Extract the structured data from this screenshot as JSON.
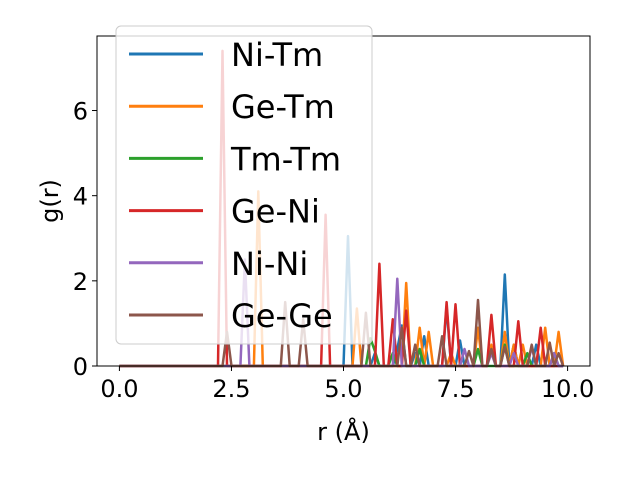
{
  "chart_data": {
    "type": "line",
    "title": "",
    "xlabel": "r (Å)",
    "ylabel": "g(r)",
    "xlim": [
      -0.5,
      10.5
    ],
    "ylim": [
      0,
      7.75
    ],
    "xticks": [
      0.0,
      2.5,
      5.0,
      7.5,
      10.0
    ],
    "xtick_labels": [
      "0.0",
      "2.5",
      "5.0",
      "7.5",
      "10.0"
    ],
    "yticks": [
      0,
      2,
      4,
      6
    ],
    "ytick_labels": [
      "0",
      "2",
      "4",
      "6"
    ],
    "grid": false,
    "legend_position": "upper-left",
    "series": [
      {
        "name": "Ni-Tm",
        "color": "#1f77b4",
        "x": [
          0,
          2.3,
          2.4,
          2.5,
          2.6,
          2.7,
          2.8,
          2.9,
          3.0,
          3.1,
          3.2,
          3.3,
          3.4,
          3.5,
          3.6,
          3.7,
          3.8,
          3.9,
          4.0,
          4.1,
          4.2,
          4.3,
          4.4,
          4.5,
          4.6,
          4.7,
          4.8,
          4.9,
          5.0,
          5.1,
          5.2,
          5.3,
          5.4,
          5.5,
          5.6,
          5.7,
          5.8,
          5.9,
          6.0,
          6.1,
          6.2,
          6.3,
          6.4,
          6.5,
          6.6,
          6.7,
          6.8,
          6.9,
          7.0,
          7.1,
          7.2,
          7.3,
          7.4,
          7.5,
          7.6,
          7.7,
          7.8,
          7.9,
          8.0,
          8.1,
          8.2,
          8.3,
          8.4,
          8.5,
          8.6,
          8.7,
          8.8,
          8.9,
          9.0,
          9.1,
          9.2,
          9.3,
          9.4,
          9.5,
          9.6,
          9.7,
          9.8,
          9.9
        ],
        "y": [
          0,
          0,
          0,
          0,
          0,
          0,
          0,
          0,
          0,
          0,
          0,
          0,
          0,
          0,
          0,
          0,
          0,
          0,
          0,
          0,
          0,
          0,
          0,
          0,
          0,
          0,
          0,
          0,
          0,
          3.05,
          0,
          0,
          0,
          0,
          0,
          0.3,
          0,
          0,
          0,
          0,
          0.4,
          0.95,
          0,
          0,
          0.3,
          0,
          0.7,
          0,
          0,
          0,
          0,
          1.4,
          0,
          0,
          0.6,
          0,
          0,
          0,
          0,
          0,
          0,
          0.4,
          0,
          0,
          2.15,
          0,
          0.5,
          0,
          0,
          0,
          0,
          0.5,
          0,
          0,
          0,
          0,
          0,
          0
        ]
      },
      {
        "name": "Ge-Tm",
        "color": "#ff7f0e",
        "x": [
          0,
          2.8,
          2.9,
          3.0,
          3.1,
          3.2,
          3.3,
          3.4,
          3.5,
          3.6,
          3.7,
          3.8,
          3.9,
          4.0,
          4.1,
          4.2,
          4.3,
          4.4,
          4.5,
          4.6,
          4.7,
          4.8,
          4.9,
          5.0,
          5.1,
          5.2,
          5.3,
          5.4,
          5.5,
          5.6,
          5.7,
          5.8,
          5.9,
          6.0,
          6.1,
          6.2,
          6.3,
          6.4,
          6.5,
          6.6,
          6.7,
          6.8,
          6.9,
          7.0,
          7.1,
          7.2,
          7.3,
          7.4,
          7.5,
          7.6,
          7.7,
          7.8,
          7.9,
          8.0,
          8.1,
          8.2,
          8.3,
          8.4,
          8.5,
          8.6,
          8.7,
          8.8,
          8.9,
          9.0,
          9.1,
          9.2,
          9.3,
          9.4,
          9.5,
          9.6,
          9.7,
          9.8,
          9.9
        ],
        "y": [
          0,
          0,
          0,
          0,
          4.1,
          0,
          0,
          0,
          0,
          0,
          0,
          0,
          0,
          0,
          0,
          0,
          0,
          0,
          0,
          0,
          0,
          0,
          0,
          0,
          0,
          0,
          1.35,
          0,
          0,
          0,
          0,
          0,
          0,
          0,
          0,
          0,
          0,
          1.95,
          0,
          0,
          0.9,
          0,
          0.8,
          0,
          0,
          0,
          0,
          0.3,
          0,
          0,
          0,
          0,
          0,
          0.9,
          0,
          0,
          0.5,
          0,
          0,
          0.8,
          0,
          0.5,
          0,
          0.5,
          0,
          0,
          0,
          0,
          0.9,
          0,
          0,
          0.8,
          0
        ]
      },
      {
        "name": "Tm-Tm",
        "color": "#2ca02c",
        "x": [
          0,
          5.4,
          5.5,
          5.6,
          5.7,
          5.8,
          5.9,
          6.0,
          6.1,
          6.2,
          6.3,
          6.4,
          6.5,
          6.6,
          6.7,
          6.8,
          6.9,
          7.0,
          7.1,
          7.2,
          7.3,
          7.4,
          7.5,
          7.6,
          7.7,
          7.8,
          7.9,
          8.0,
          8.1,
          8.2,
          8.3,
          8.4,
          8.5,
          8.6,
          8.7,
          8.8,
          8.9,
          9.0,
          9.1,
          9.2,
          9.3,
          9.4,
          9.5,
          9.6,
          9.7,
          9.8,
          9.9
        ],
        "y": [
          0,
          0,
          0,
          0.65,
          0.35,
          0,
          0,
          0,
          0.3,
          0,
          0,
          0,
          0,
          0,
          0.4,
          0,
          0,
          0,
          0,
          0,
          0,
          0,
          0,
          0,
          0,
          0,
          0,
          0.4,
          0,
          0,
          0,
          0,
          0,
          0.5,
          0,
          0,
          0,
          0,
          0.3,
          0,
          0,
          0,
          0,
          0,
          0.3,
          0,
          0
        ]
      },
      {
        "name": "Ge-Ni",
        "color": "#d62728",
        "x": [
          0,
          2.1,
          2.2,
          2.3,
          2.4,
          2.5,
          2.6,
          2.7,
          2.8,
          2.9,
          3.0,
          3.1,
          3.2,
          3.3,
          3.4,
          3.5,
          3.6,
          3.7,
          3.8,
          3.9,
          4.0,
          4.1,
          4.2,
          4.3,
          4.4,
          4.5,
          4.6,
          4.7,
          4.8,
          4.9,
          5.0,
          5.1,
          5.2,
          5.3,
          5.4,
          5.5,
          5.6,
          5.7,
          5.8,
          5.9,
          6.0,
          6.1,
          6.2,
          6.3,
          6.4,
          6.5,
          6.6,
          6.7,
          6.8,
          6.9,
          7.0,
          7.1,
          7.2,
          7.3,
          7.4,
          7.5,
          7.6,
          7.7,
          7.8,
          7.9,
          8.0,
          8.1,
          8.2,
          8.3,
          8.4,
          8.5,
          8.6,
          8.7,
          8.8,
          8.9,
          9.0,
          9.1,
          9.2,
          9.3,
          9.4,
          9.5,
          9.6,
          9.7,
          9.8,
          9.9
        ],
        "y": [
          0,
          0,
          0,
          7.4,
          0,
          0,
          0,
          0,
          0,
          0,
          0,
          0,
          0,
          0,
          0,
          0,
          0,
          0,
          0,
          0,
          0,
          0,
          0,
          0,
          0,
          0,
          3.55,
          0,
          0,
          0,
          0,
          0,
          0,
          0,
          0,
          0,
          0,
          0,
          2.4,
          0,
          0,
          1.1,
          0,
          0,
          1.3,
          0,
          0,
          0,
          0,
          0,
          0,
          0,
          0,
          1.5,
          0,
          1.45,
          0,
          0,
          0,
          0,
          0,
          0,
          0,
          1.2,
          0,
          0,
          0,
          0,
          0,
          1.05,
          0,
          0,
          0,
          0,
          0.9,
          0,
          0,
          0,
          0,
          0
        ]
      },
      {
        "name": "Ni-Ni",
        "color": "#9467bd",
        "x": [
          0,
          2.6,
          2.7,
          2.8,
          2.9,
          3.0,
          3.1,
          3.2,
          3.3,
          3.4,
          3.5,
          3.6,
          3.7,
          3.8,
          3.9,
          4.0,
          4.1,
          4.2,
          4.3,
          4.4,
          4.5,
          4.6,
          4.7,
          4.8,
          4.9,
          5.0,
          5.1,
          5.2,
          5.3,
          5.4,
          5.5,
          5.6,
          5.7,
          5.8,
          5.9,
          6.0,
          6.1,
          6.2,
          6.3,
          6.4,
          6.5,
          6.6,
          6.7,
          6.8,
          6.9,
          7.0,
          7.1,
          7.2,
          7.3,
          7.4,
          7.5,
          7.6,
          7.7,
          7.8,
          7.9,
          8.0,
          8.1,
          8.2,
          8.3,
          8.4,
          8.5,
          8.6,
          8.7,
          8.8,
          8.9,
          9.0,
          9.1,
          9.2,
          9.3,
          9.4,
          9.5,
          9.6,
          9.7,
          9.8,
          9.9
        ],
        "y": [
          0,
          0,
          0,
          2.5,
          0,
          0,
          0,
          0,
          0,
          0,
          0,
          0,
          0,
          0,
          0,
          0,
          0,
          0,
          0,
          0,
          0,
          0,
          0,
          0,
          0,
          0,
          0,
          0,
          0,
          0,
          0,
          0,
          0,
          0,
          0,
          0,
          0,
          2.05,
          0,
          0,
          0,
          0,
          0,
          0,
          0,
          0,
          0,
          0,
          0,
          0,
          0,
          0,
          0.4,
          0,
          0,
          0,
          0,
          0,
          0.3,
          0,
          0,
          0,
          0,
          0.3,
          0,
          0,
          0,
          0.45,
          0,
          0,
          0,
          0,
          0.3,
          0,
          0
        ]
      },
      {
        "name": "Ge-Ge",
        "color": "#8c564b",
        "x": [
          0,
          2.3,
          2.4,
          2.5,
          2.6,
          2.7,
          2.8,
          2.9,
          3.0,
          3.1,
          3.2,
          3.3,
          3.4,
          3.5,
          3.6,
          3.7,
          3.8,
          3.9,
          4.0,
          4.1,
          4.2,
          4.3,
          4.4,
          4.5,
          4.6,
          4.7,
          4.8,
          4.9,
          5.0,
          5.1,
          5.2,
          5.3,
          5.4,
          5.5,
          5.6,
          5.7,
          5.8,
          5.9,
          6.0,
          6.1,
          6.2,
          6.3,
          6.4,
          6.5,
          6.6,
          6.7,
          6.8,
          6.9,
          7.0,
          7.1,
          7.2,
          7.3,
          7.4,
          7.5,
          7.6,
          7.7,
          7.8,
          7.9,
          8.0,
          8.1,
          8.2,
          8.3,
          8.4,
          8.5,
          8.6,
          8.7,
          8.8,
          8.9,
          9.0,
          9.1,
          9.2,
          9.3,
          9.4,
          9.5,
          9.6,
          9.7,
          9.8,
          9.9
        ],
        "y": [
          0,
          0,
          0.8,
          0,
          0,
          0,
          0,
          0,
          0,
          0,
          0,
          0,
          0,
          0,
          0,
          1.5,
          0,
          0,
          0,
          1.1,
          0,
          0,
          0,
          0,
          0,
          0,
          0,
          0,
          0,
          0,
          0,
          0,
          0,
          1.25,
          0,
          0,
          0,
          0,
          0,
          0,
          0,
          0.9,
          0,
          0,
          0.5,
          0,
          0,
          0,
          0,
          0,
          0.7,
          0,
          0,
          0,
          0,
          0,
          0.35,
          0,
          1.55,
          0,
          0,
          0.4,
          0,
          0,
          0.45,
          0,
          0,
          0,
          0,
          0,
          0.5,
          0,
          0,
          0,
          0.55,
          0,
          0.3,
          0
        ]
      }
    ]
  }
}
